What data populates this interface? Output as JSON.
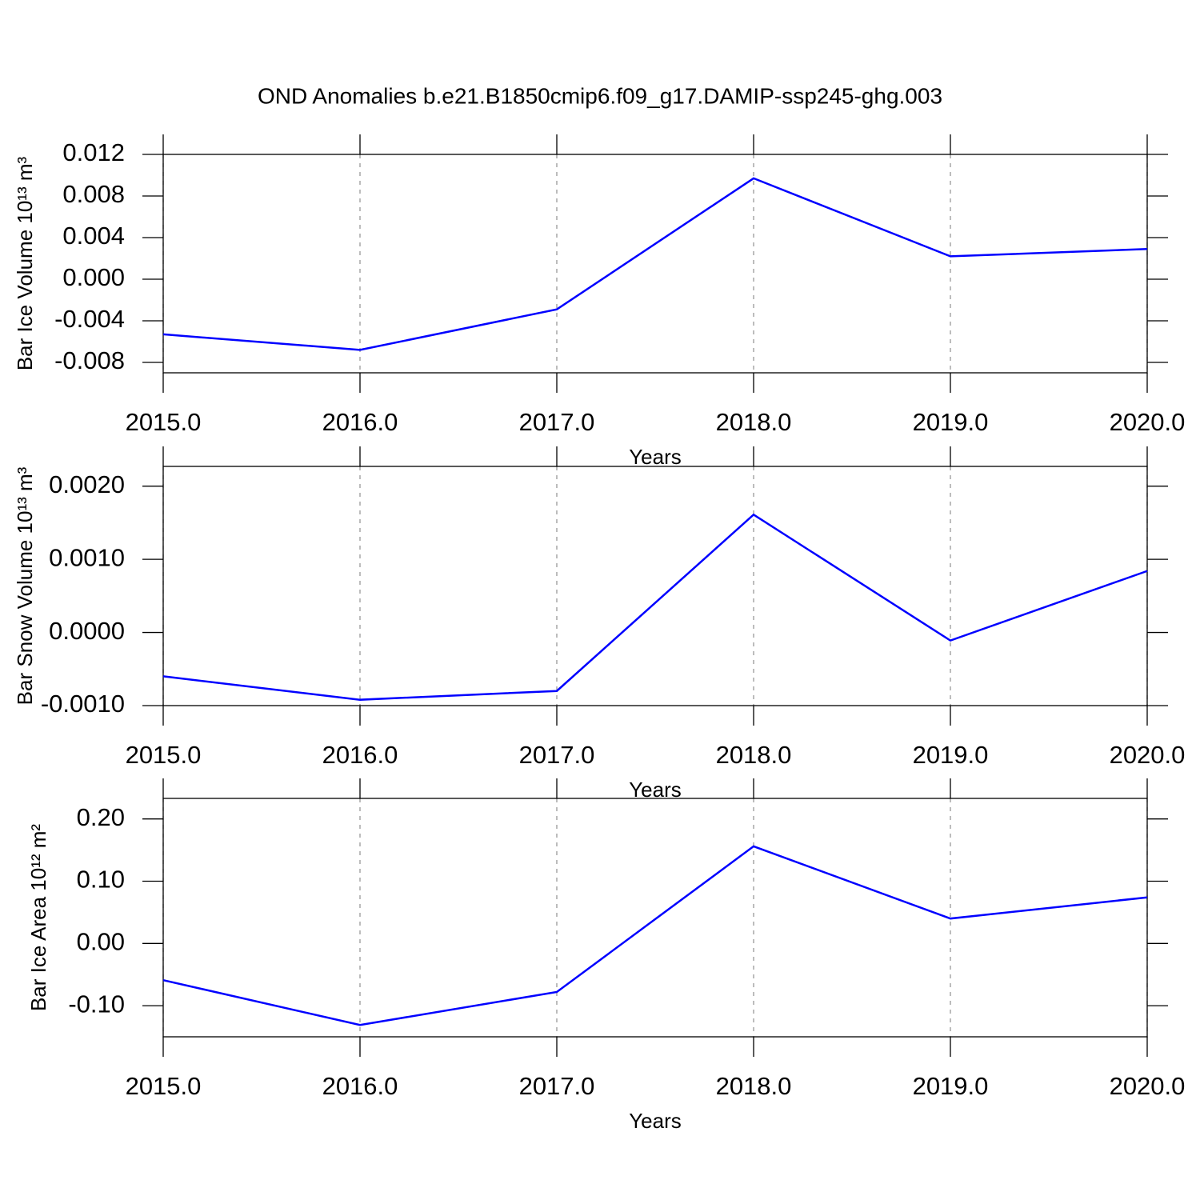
{
  "title": "OND Anomalies b.e21.B1850cmip6.f09_g17.DAMIP-ssp245-ghg.003",
  "chart_data": [
    {
      "type": "line",
      "ylabel": "Bar Ice Volume 10¹³ m³",
      "xlabel": "Years",
      "grid": "x",
      "x": [
        2015,
        2016,
        2017,
        2018,
        2019,
        2020
      ],
      "series": [
        {
          "color": "#0000ff",
          "values": [
            -0.0053,
            -0.0068,
            -0.0029,
            0.0097,
            0.0022,
            0.0029
          ]
        }
      ],
      "xlim": [
        2015,
        2020
      ],
      "xticks": [
        {
          "value": 2015,
          "label": "2015.0"
        },
        {
          "value": 2016,
          "label": "2016.0"
        },
        {
          "value": 2017,
          "label": "2017.0"
        },
        {
          "value": 2018,
          "label": "2018.0"
        },
        {
          "value": 2019,
          "label": "2019.0"
        },
        {
          "value": 2020,
          "label": "2020.0"
        }
      ],
      "ylim": [
        -0.009,
        0.012
      ],
      "yticks": [
        0.012,
        0.008,
        0.004,
        {
          "value": 0,
          "label": "0.000"
        },
        -0.004,
        -0.008
      ]
    },
    {
      "type": "line",
      "ylabel": "Bar Snow Volume 10¹³ m³",
      "xlabel": "Years",
      "grid": "x",
      "x": [
        2015,
        2016,
        2017,
        2018,
        2019,
        2020
      ],
      "series": [
        {
          "color": "#0000ff",
          "values": [
            -0.0006,
            -0.00092,
            -0.0008,
            0.00161,
            -0.00011,
            0.00084
          ]
        }
      ],
      "xlim": [
        2015,
        2020
      ],
      "xticks": [
        {
          "value": 2015,
          "label": "2015.0"
        },
        {
          "value": 2016,
          "label": "2016.0"
        },
        {
          "value": 2017,
          "label": "2017.0"
        },
        {
          "value": 2018,
          "label": "2018.0"
        },
        {
          "value": 2019,
          "label": "2019.0"
        },
        {
          "value": 2020,
          "label": "2020.0"
        }
      ],
      "ylim": [
        -0.001,
        0.00227
      ],
      "yticks": [
        {
          "value": 0.002,
          "label": "0.0020"
        },
        {
          "value": 0.001,
          "label": "0.0010"
        },
        {
          "value": 0,
          "label": "0.0000"
        },
        {
          "value": -0.001,
          "label": "-0.0010"
        }
      ]
    },
    {
      "type": "line",
      "ylabel": "Bar Ice Area 10¹² m²",
      "xlabel": "Years",
      "grid": "x",
      "x": [
        2015,
        2016,
        2017,
        2018,
        2019,
        2020
      ],
      "series": [
        {
          "color": "#0000ff",
          "values": [
            -0.059,
            -0.131,
            -0.078,
            0.156,
            0.04,
            0.074
          ]
        }
      ],
      "xlim": [
        2015,
        2020
      ],
      "xticks": [
        {
          "value": 2015,
          "label": "2015.0"
        },
        {
          "value": 2016,
          "label": "2016.0"
        },
        {
          "value": 2017,
          "label": "2017.0"
        },
        {
          "value": 2018,
          "label": "2018.0"
        },
        {
          "value": 2019,
          "label": "2019.0"
        },
        {
          "value": 2020,
          "label": "2020.0"
        }
      ],
      "ylim": [
        -0.15,
        0.233
      ],
      "yticks": [
        {
          "value": 0.2,
          "label": "0.20"
        },
        {
          "value": 0.1,
          "label": "0.10"
        },
        {
          "value": 0,
          "label": "0.00"
        },
        {
          "value": -0.1,
          "label": "-0.10"
        }
      ]
    }
  ]
}
